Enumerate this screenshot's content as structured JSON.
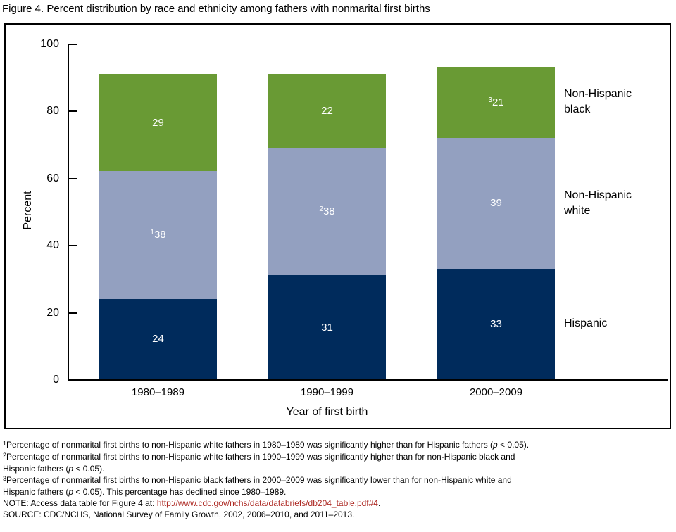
{
  "page": {
    "title": "Figure 4. Percent distribution by race and ethnicity among fathers with nonmarital first births"
  },
  "chart_data": {
    "type": "bar",
    "stacked": true,
    "title": "Figure 4. Percent distribution by race and ethnicity among fathers with nonmarital first births",
    "categories": [
      "1980–1989",
      "1990–1999",
      "2000–2009"
    ],
    "series": [
      {
        "name": "Hispanic",
        "color": "#002B5C",
        "values": [
          24,
          31,
          33
        ],
        "sups": [
          "",
          "",
          ""
        ],
        "legend_lines": [
          "Hispanic"
        ]
      },
      {
        "name": "Non-Hispanic white",
        "color": "#93A0C0",
        "values": [
          38,
          38,
          39
        ],
        "sups": [
          "1",
          "2",
          ""
        ],
        "legend_lines": [
          "Non-Hispanic",
          "white"
        ]
      },
      {
        "name": "Non-Hispanic black",
        "color": "#699A34",
        "values": [
          29,
          22,
          21
        ],
        "sups": [
          "",
          "",
          "3"
        ],
        "legend_lines": [
          "Non-Hispanic",
          "black"
        ]
      }
    ],
    "xlabel": "Year of first birth",
    "ylabel": "Percent",
    "ylim": [
      0,
      100
    ],
    "yticks": [
      0,
      20,
      40,
      60,
      80,
      100
    ],
    "legend_position": "right",
    "grid": false
  },
  "colors": {
    "link": "#AE2B25",
    "text": "#000000"
  },
  "footnote_lines": [
    {
      "segments": [
        {
          "style": "sup",
          "text": "1"
        },
        {
          "style": "",
          "text": "Percentage of nonmarital first births to non-Hispanic white fathers in 1980–1989 was significantly higher than for Hispanic fathers ("
        },
        {
          "style": "italic",
          "text": "p"
        },
        {
          "style": "",
          "text": " < 0.05)."
        }
      ]
    },
    {
      "segments": [
        {
          "style": "sup",
          "text": "2"
        },
        {
          "style": "",
          "text": "Percentage of nonmarital first births to non-Hispanic white fathers in 1990–1999 was significantly higher than for non-Hispanic black and"
        }
      ]
    },
    {
      "segments": [
        {
          "style": "",
          "text": "Hispanic fathers ("
        },
        {
          "style": "italic",
          "text": "p"
        },
        {
          "style": "",
          "text": " < 0.05)."
        }
      ]
    },
    {
      "segments": [
        {
          "style": "sup",
          "text": "3"
        },
        {
          "style": "",
          "text": "Percentage of nonmarital first births to non-Hispanic black fathers in 2000–2009 was significantly lower than for non-Hispanic white and"
        }
      ]
    },
    {
      "segments": [
        {
          "style": "",
          "text": "Hispanic fathers ("
        },
        {
          "style": "italic",
          "text": "p"
        },
        {
          "style": "",
          "text": " < 0.05). This percentage has declined since 1980–1989."
        }
      ]
    },
    {
      "segments": [
        {
          "style": "",
          "text": "NOTE: Access data table for Figure 4 at: "
        },
        {
          "style": "link",
          "text": "http://www.cdc.gov/nchs/data/databriefs/db204_table.pdf#4"
        },
        {
          "style": "",
          "text": "."
        }
      ]
    },
    {
      "segments": [
        {
          "style": "",
          "text": "SOURCE: CDC/NCHS, National Survey of Family Growth, 2002, 2006–2010, and 2011–2013."
        }
      ]
    }
  ]
}
